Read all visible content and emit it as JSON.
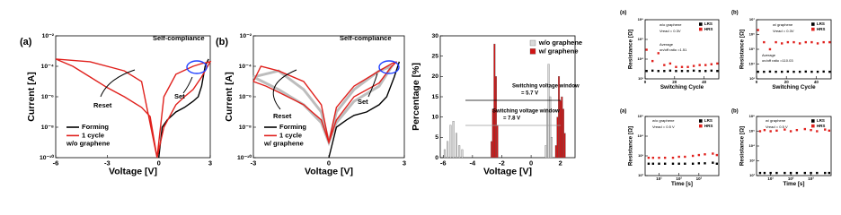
{
  "chart_data": [
    {
      "type": "line",
      "panel_label": "(a)",
      "xlabel": "Voltage [V]",
      "ylabel": "Current [A]",
      "xscale": "linear",
      "yscale": "log",
      "xlim": [
        -6,
        3
      ],
      "ylim": [
        1e-10,
        0.01
      ],
      "xticks": [
        -6,
        -3,
        0,
        3
      ],
      "yticks": [
        {
          "value": 1e-10,
          "label": "10⁻¹⁰"
        },
        {
          "value": 1e-08,
          "label": "10⁻⁸"
        },
        {
          "value": 1e-06,
          "label": "10⁻⁶"
        },
        {
          "value": 0.0001,
          "label": "10⁻⁴"
        },
        {
          "value": 0.01,
          "label": "10⁻²"
        }
      ],
      "series": [
        {
          "name": "Forming",
          "color": "#000000",
          "x": [
            0,
            0.2,
            0.5,
            1,
            1.5,
            2,
            2.3,
            2.5,
            2.7,
            2.9
          ],
          "values": [
            1e-10,
            1e-08,
            3e-08,
            1e-07,
            2e-07,
            5e-07,
            1e-06,
            5e-06,
            0.0001,
            0.0003
          ]
        },
        {
          "name": "1 cycle",
          "color": "#e0201c",
          "x": [
            -6,
            -5,
            -4,
            -3,
            -2,
            -1,
            -0.5,
            -0.1,
            0.3,
            1,
            1.5,
            2,
            2.5,
            3,
            2.5,
            2,
            1,
            0.3,
            -0.1,
            -1,
            -2,
            -4,
            -6
          ],
          "values": [
            0.0003,
            0.0001,
            2e-05,
            4e-06,
            1e-06,
            2e-07,
            5e-08,
            1e-10,
            1e-08,
            3e-07,
            1e-06,
            3e-06,
            2e-05,
            0.0002,
            0.00015,
            0.0001,
            3e-05,
            1e-06,
            1e-10,
            1e-05,
            5e-05,
            0.0002,
            0.0003
          ]
        }
      ],
      "legend_note": "w/o graphene",
      "annotations": [
        {
          "text": "Self-compliance",
          "color": "#1f3fff"
        },
        {
          "text": "Reset",
          "color": "#000000"
        },
        {
          "text": "Set",
          "color": "#000000"
        }
      ]
    },
    {
      "type": "line",
      "panel_label": "(b)",
      "xlabel": "Voltage [V]",
      "ylabel": "Current [A]",
      "xscale": "linear",
      "yscale": "log",
      "xlim": [
        -3,
        3
      ],
      "ylim": [
        1e-10,
        0.01
      ],
      "xticks": [
        -3,
        0,
        3
      ],
      "yticks": [
        {
          "value": 1e-10,
          "label": "10⁻¹⁰"
        },
        {
          "value": 1e-08,
          "label": "10⁻⁸"
        },
        {
          "value": 1e-06,
          "label": "10⁻⁶"
        },
        {
          "value": 0.0001,
          "label": "10⁻⁴"
        },
        {
          "value": 0.01,
          "label": "10⁻²"
        }
      ],
      "series": [
        {
          "color": "#bdbdbd",
          "x": [
            -3,
            -2,
            -1,
            -0.3,
            0,
            0.3,
            1,
            2,
            2.5,
            2.5,
            2,
            1,
            0.3,
            0,
            -0.3,
            -1,
            -2,
            -3
          ],
          "values": [
            2e-05,
            3e-06,
            3e-07,
            2e-08,
            1e-09,
            2e-08,
            5e-07,
            5e-06,
            0.0001,
            0.0001,
            5e-05,
            3e-06,
            1e-07,
            1e-09,
            1e-07,
            3e-06,
            5e-05,
            2e-05
          ]
        },
        {
          "name": "Forming",
          "color": "#000000",
          "x": [
            0,
            0.3,
            0.7,
            1,
            1.5,
            2,
            2.3,
            2.6,
            2.8
          ],
          "values": [
            1e-10,
            1e-08,
            3e-08,
            6e-08,
            1e-07,
            3e-07,
            1e-06,
            2e-05,
            0.0002
          ]
        },
        {
          "name": "1 cycle",
          "color": "#e0201c",
          "x": [
            -3,
            -2.5,
            -2,
            -1,
            -0.3,
            0,
            0.3,
            1,
            2,
            2.5,
            2.7,
            2.5,
            2,
            1,
            0.3,
            0,
            -0.3,
            -1,
            -2,
            -2.7,
            -3
          ],
          "values": [
            1e-05,
            5e-06,
            2e-06,
            3e-07,
            3e-08,
            1e-09,
            3e-08,
            1e-06,
            8e-06,
            0.0001,
            0.0002,
            0.00015,
            5e-05,
            5e-06,
            2e-07,
            1e-09,
            3e-07,
            1e-05,
            5e-05,
            0.0001,
            1e-05
          ]
        }
      ],
      "legend_note": "w/ graphene",
      "annotations": [
        {
          "text": "Self-compliance",
          "color": "#1f3fff"
        },
        {
          "text": "Reset",
          "color": "#000000"
        },
        {
          "text": "Set",
          "color": "#000000"
        }
      ]
    },
    {
      "type": "histogram",
      "xlabel": "Voltage [V]",
      "ylabel": "Percentage [%]",
      "xscale": "linear",
      "yscale": "linear",
      "xlim": [
        -6.2,
        3
      ],
      "ylim": [
        0,
        30
      ],
      "xticks": [
        -6,
        -4,
        -2,
        0,
        2
      ],
      "yticks": [
        0,
        5,
        10,
        15,
        20,
        25,
        30
      ],
      "series": [
        {
          "name": "w/o graphene",
          "color": "#d9d9d9",
          "x": [
            -5.9,
            -5.7,
            -5.5,
            -5.3,
            -5.1,
            -4.9,
            -4.7,
            1.0,
            1.1,
            1.2,
            1.3,
            1.4
          ],
          "values": [
            2,
            4,
            8,
            9,
            6,
            3,
            2,
            3,
            12,
            23,
            15,
            5
          ]
        },
        {
          "name": "w/ graphene",
          "color": "#d01414",
          "x": [
            -2.7,
            -2.6,
            -2.5,
            -2.4,
            -2.3,
            1.7,
            1.8,
            1.9,
            2.0,
            2.1,
            2.2,
            2.3
          ],
          "values": [
            4,
            12,
            28,
            20,
            8,
            3,
            10,
            20,
            14,
            15,
            12,
            6
          ]
        }
      ],
      "annotations": [
        {
          "text": "Switching voltage window",
          "color": "#000000"
        },
        {
          "text": "= 5.7 V",
          "color": "#000000"
        },
        {
          "text": "Switching voltage window",
          "color": "#9a9a9a"
        },
        {
          "text": "= 7.8 V",
          "color": "#9a9a9a"
        }
      ]
    },
    {
      "type": "scatter",
      "panel_label": "(a)",
      "xlabel": "Switching Cycle",
      "ylabel": "Resistance [Ω]",
      "xscale": "linear",
      "yscale": "log",
      "xlim": [
        0,
        50
      ],
      "ylim": [
        1000,
        1000000
      ],
      "xticks": [
        0,
        20,
        40
      ],
      "yticks": [
        {
          "value": 1000,
          "label": "10³"
        },
        {
          "value": 10000,
          "label": "10⁴"
        },
        {
          "value": 100000,
          "label": "10⁵"
        },
        {
          "value": 1000000,
          "label": "10⁶"
        }
      ],
      "series": [
        {
          "name": "LRS",
          "color": "#000000",
          "x": [
            1,
            5,
            9,
            13,
            17,
            21,
            25,
            29,
            33,
            37,
            41,
            45,
            49
          ],
          "values": [
            2500,
            2600,
            2500,
            2500,
            2600,
            2500,
            2500,
            2500,
            2600,
            2500,
            2500,
            2600,
            2500
          ]
        },
        {
          "name": "HRS",
          "color": "#e0201c",
          "x": [
            1,
            5,
            9,
            13,
            17,
            21,
            25,
            29,
            33,
            37,
            41,
            45,
            49
          ],
          "values": [
            30000,
            8000,
            20000,
            5000,
            6000,
            4000,
            4000,
            4000,
            4500,
            5000,
            5000,
            5500,
            6000
          ]
        }
      ],
      "notes": [
        "w/o graphene",
        "Vread = 0.3V",
        "Average",
        "on/off ratio =1.51"
      ]
    },
    {
      "type": "scatter",
      "panel_label": "(b)",
      "xlabel": "Switching Cycle",
      "ylabel": "Resistance [Ω]",
      "xscale": "linear",
      "yscale": "log",
      "xlim": [
        0,
        50
      ],
      "ylim": [
        1000,
        10000000
      ],
      "xticks": [
        0,
        20,
        40
      ],
      "yticks": [
        {
          "value": 1000,
          "label": "10³"
        },
        {
          "value": 10000,
          "label": "10⁴"
        },
        {
          "value": 100000,
          "label": "10⁵"
        },
        {
          "value": 1000000,
          "label": "10⁶"
        },
        {
          "value": 10000000,
          "label": "10⁷"
        }
      ],
      "series": [
        {
          "name": "LRS",
          "color": "#000000",
          "x": [
            1,
            5,
            9,
            13,
            17,
            21,
            25,
            29,
            33,
            37,
            41,
            45,
            49
          ],
          "values": [
            3000,
            3000,
            3100,
            3000,
            3000,
            3100,
            3000,
            3000,
            3100,
            3000,
            3000,
            3100,
            3000
          ]
        },
        {
          "name": "HRS",
          "color": "#e0201c",
          "x": [
            1,
            5,
            9,
            13,
            17,
            21,
            25,
            29,
            33,
            37,
            41,
            45,
            49
          ],
          "values": [
            2000000,
            300000,
            100000,
            300000,
            250000,
            300000,
            300000,
            250000,
            300000,
            300000,
            250000,
            300000,
            300000
          ]
        }
      ],
      "notes": [
        "w/ graphene",
        "Vread = 0.3V",
        "Average",
        "on/off ratio =110.03"
      ]
    },
    {
      "type": "scatter",
      "panel_label": "(a)",
      "xlabel": "Time [s]",
      "ylabel": "Resistance [Ω]",
      "xscale": "log",
      "yscale": "log",
      "xlim": [
        2,
        10000
      ],
      "ylim": [
        100,
        100000
      ],
      "xticks": [
        {
          "value": 10,
          "label": "10¹"
        },
        {
          "value": 100,
          "label": "10²"
        },
        {
          "value": 1000,
          "label": "10³"
        }
      ],
      "yticks": [
        {
          "value": 100,
          "label": "10²"
        },
        {
          "value": 1000,
          "label": "10³"
        },
        {
          "value": 10000,
          "label": "10⁴"
        },
        {
          "value": 100000,
          "label": "10⁵"
        }
      ],
      "series": [
        {
          "name": "LRS",
          "color": "#000000",
          "x": [
            3,
            5,
            10,
            20,
            50,
            100,
            200,
            500,
            1000,
            2000,
            5000,
            8000
          ],
          "values": [
            400,
            400,
            400,
            400,
            400,
            400,
            400,
            400,
            420,
            420,
            450,
            400
          ]
        },
        {
          "name": "HRS",
          "color": "#e0201c",
          "x": [
            3,
            5,
            10,
            20,
            50,
            100,
            200,
            500,
            1000,
            2000,
            5000,
            8000
          ],
          "values": [
            800,
            800,
            800,
            800,
            800,
            900,
            900,
            1000,
            1100,
            1200,
            1300,
            1100
          ]
        }
      ],
      "notes": [
        "w/o graphene",
        "Vread = 0.5 V"
      ]
    },
    {
      "type": "scatter",
      "panel_label": "(b)",
      "xlabel": "Time [s]",
      "ylabel": "Resistance [Ω]",
      "xscale": "log",
      "yscale": "log",
      "xlim": [
        2,
        10000
      ],
      "ylim": [
        100,
        1000000
      ],
      "xticks": [
        {
          "value": 10,
          "label": "10¹"
        },
        {
          "value": 100,
          "label": "10²"
        },
        {
          "value": 1000,
          "label": "10³"
        }
      ],
      "yticks": [
        {
          "value": 100,
          "label": "10²"
        },
        {
          "value": 1000,
          "label": "10³"
        },
        {
          "value": 10000,
          "label": "10⁴"
        },
        {
          "value": 100000,
          "label": "10⁵"
        },
        {
          "value": 1000000,
          "label": "10⁶"
        }
      ],
      "series": [
        {
          "name": "LRS",
          "color": "#000000",
          "x": [
            3,
            5,
            10,
            20,
            50,
            100,
            200,
            500,
            1000,
            2000,
            5000,
            8000
          ],
          "values": [
            150,
            150,
            150,
            150,
            150,
            150,
            150,
            150,
            150,
            150,
            150,
            150
          ]
        },
        {
          "name": "HRS",
          "color": "#e0201c",
          "x": [
            3,
            5,
            10,
            20,
            50,
            100,
            200,
            500,
            1000,
            2000,
            5000,
            8000
          ],
          "values": [
            100000,
            120000,
            100000,
            110000,
            130000,
            100000,
            120000,
            140000,
            120000,
            100000,
            130000,
            110000
          ]
        }
      ],
      "notes": [
        "w/ graphene",
        "Vread = 0.5 V"
      ]
    }
  ]
}
